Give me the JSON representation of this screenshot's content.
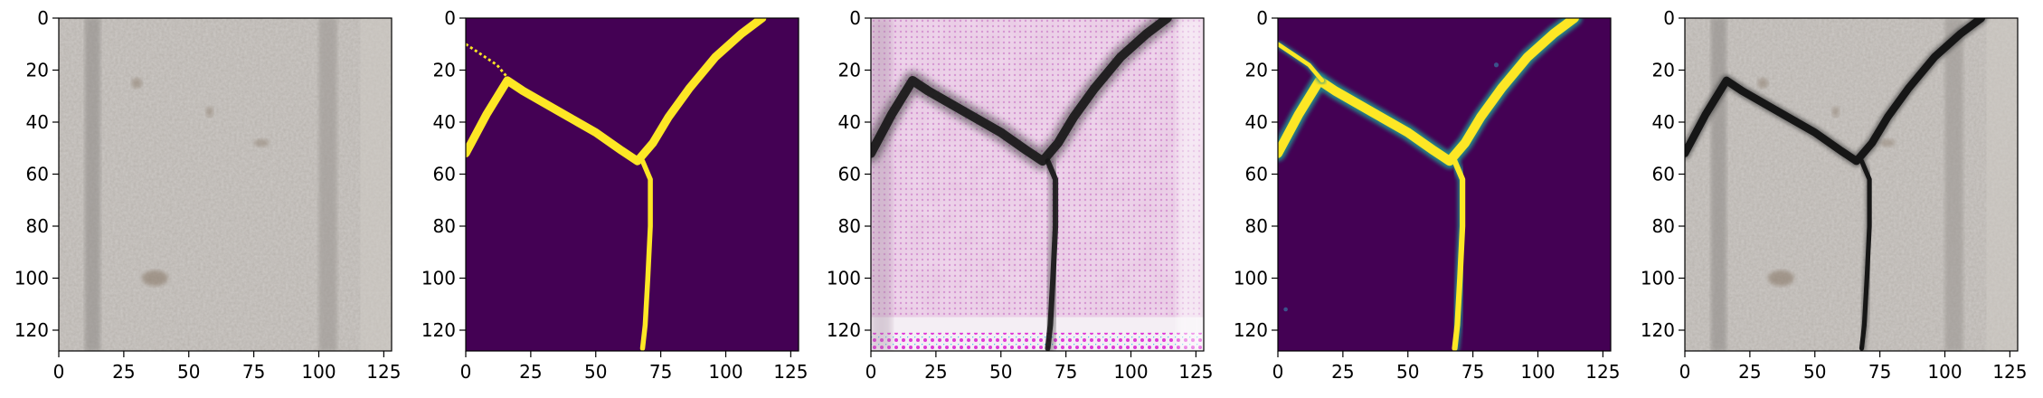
{
  "figure": {
    "panels": [
      {
        "content": "crack-input-photo",
        "xlim": [
          0,
          128
        ],
        "ylim": [
          128,
          0
        ]
      },
      {
        "content": "ground-truth-mask",
        "xlim": [
          0,
          128
        ],
        "ylim": [
          128,
          0
        ]
      },
      {
        "content": "generated-crack-texture",
        "xlim": [
          0,
          128
        ],
        "ylim": [
          128,
          0
        ]
      },
      {
        "content": "predicted-probability-map",
        "xlim": [
          0,
          128
        ],
        "ylim": [
          128,
          0
        ]
      },
      {
        "content": "crack-overlay-photo",
        "xlim": [
          0,
          128
        ],
        "ylim": [
          128,
          0
        ]
      }
    ],
    "x_ticks": [
      "0",
      "25",
      "50",
      "75",
      "100",
      "125"
    ],
    "x_tick_values": [
      0,
      25,
      50,
      75,
      100,
      125
    ],
    "y_ticks": [
      "0",
      "20",
      "40",
      "60",
      "80",
      "100",
      "120"
    ],
    "y_tick_values": [
      0,
      20,
      40,
      60,
      80,
      100,
      120
    ],
    "colors": {
      "mask_background": "#440154",
      "mask_foreground": "#fde725",
      "concrete": "#b7b2ad",
      "crack": "#161616"
    }
  }
}
